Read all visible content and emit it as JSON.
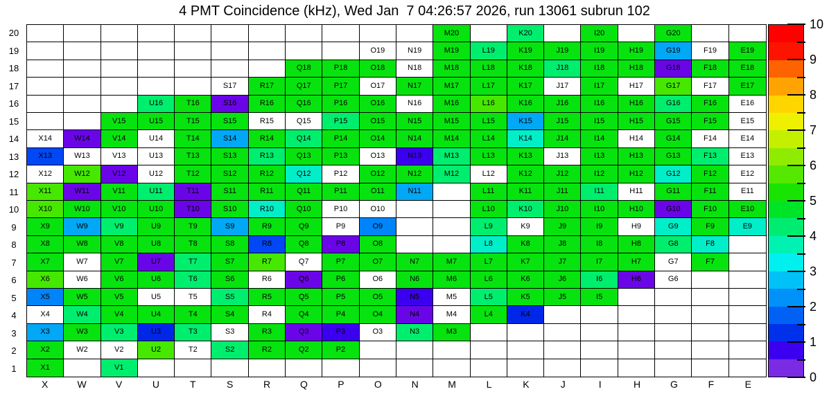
{
  "chart_data": {
    "type": "heatmap",
    "title": "4 PMT Coincidence (kHz), Wed Jan  7 04:26:57 2026, run 13061 subrun 102",
    "run": "13061",
    "subrun": "102",
    "timestamp": "Wed Jan  7 04:26:57 2026",
    "unit": "kHz",
    "columns": [
      "X",
      "W",
      "V",
      "U",
      "T",
      "S",
      "R",
      "Q",
      "P",
      "O",
      "N",
      "M",
      "L",
      "K",
      "J",
      "I",
      "H",
      "G",
      "F",
      "E"
    ],
    "rows": [
      20,
      19,
      18,
      17,
      16,
      15,
      14,
      13,
      12,
      11,
      10,
      9,
      8,
      7,
      6,
      5,
      4,
      3,
      2,
      1
    ],
    "cell_code_legend": "E=empty no PMT, W=white with label (no rate), others=color bucket of measured rate",
    "value_map": {
      "G": 5.0,
      "YG": 5.8,
      "SG": 4.4,
      "TQ": 3.7,
      "LB": 2.8,
      "B": 2.3,
      "DB": 1.8,
      "PB": 1.4,
      "VB": 0.9,
      "V": 0.4,
      "W": null,
      "E": null
    },
    "palette": {
      "G": "#07e30e",
      "YG": "#46e800",
      "SG": "#00ee6e",
      "TQ": "#00eec8",
      "LB": "#00a8f5",
      "B": "#0084fa",
      "DB": "#0047f5",
      "PB": "#0027e8",
      "VB": "#3c00f0",
      "V": "#6a05e8",
      "W": "#ffffff",
      "E": "#ffffff"
    },
    "cells": [
      [
        "E",
        "E",
        "E",
        "E",
        "E",
        "E",
        "E",
        "E",
        "E",
        "E",
        "E",
        "G",
        "E",
        "SG",
        "E",
        "G",
        "E",
        "G",
        "E",
        "E"
      ],
      [
        "E",
        "E",
        "E",
        "E",
        "E",
        "E",
        "E",
        "E",
        "E",
        "W",
        "W",
        "G",
        "SG",
        "G",
        "G",
        "G",
        "G",
        "LB",
        "W",
        "G"
      ],
      [
        "E",
        "E",
        "E",
        "E",
        "E",
        "E",
        "E",
        "G",
        "G",
        "G",
        "W",
        "G",
        "G",
        "G",
        "SG",
        "G",
        "G",
        "V",
        "G",
        "G"
      ],
      [
        "E",
        "E",
        "E",
        "E",
        "E",
        "W",
        "G",
        "G",
        "G",
        "W",
        "G",
        "G",
        "G",
        "G",
        "W",
        "G",
        "W",
        "YG",
        "W",
        "G"
      ],
      [
        "E",
        "E",
        "E",
        "SG",
        "G",
        "V",
        "G",
        "G",
        "G",
        "G",
        "W",
        "G",
        "YG",
        "G",
        "G",
        "G",
        "G",
        "SG",
        "G",
        "W"
      ],
      [
        "E",
        "E",
        "G",
        "G",
        "G",
        "G",
        "W",
        "W",
        "SG",
        "G",
        "G",
        "G",
        "G",
        "LB",
        "G",
        "G",
        "G",
        "G",
        "G",
        "W"
      ],
      [
        "W",
        "V",
        "G",
        "W",
        "G",
        "LB",
        "G",
        "SG",
        "G",
        "G",
        "G",
        "G",
        "G",
        "TQ",
        "G",
        "G",
        "W",
        "G",
        "W",
        "W"
      ],
      [
        "DB",
        "W",
        "W",
        "W",
        "G",
        "G",
        "SG",
        "G",
        "G",
        "W",
        "VB",
        "SG",
        "G",
        "G",
        "W",
        "G",
        "G",
        "G",
        "SG",
        "W"
      ],
      [
        "W",
        "YG",
        "V",
        "W",
        "G",
        "G",
        "G",
        "TQ",
        "W",
        "G",
        "G",
        "SG",
        "W",
        "G",
        "G",
        "G",
        "G",
        "TQ",
        "G",
        "W"
      ],
      [
        "YG",
        "V",
        "G",
        "SG",
        "V",
        "G",
        "G",
        "G",
        "G",
        "G",
        "LB",
        "E",
        "G",
        "G",
        "G",
        "SG",
        "W",
        "G",
        "G",
        "W"
      ],
      [
        "YG",
        "G",
        "G",
        "G",
        "V",
        "G",
        "TQ",
        "G",
        "W",
        "W",
        "E",
        "E",
        "G",
        "SG",
        "G",
        "G",
        "G",
        "V",
        "G",
        "G"
      ],
      [
        "G",
        "LB",
        "SG",
        "G",
        "G",
        "LB",
        "G",
        "G",
        "W",
        "B",
        "E",
        "E",
        "SG",
        "W",
        "G",
        "G",
        "W",
        "TQ",
        "G",
        "TQ"
      ],
      [
        "G",
        "G",
        "G",
        "G",
        "G",
        "G",
        "DB",
        "G",
        "V",
        "G",
        "E",
        "E",
        "TQ",
        "G",
        "G",
        "G",
        "G",
        "SG",
        "TQ",
        "E"
      ],
      [
        "G",
        "W",
        "G",
        "V",
        "SG",
        "G",
        "YG",
        "W",
        "G",
        "G",
        "G",
        "G",
        "G",
        "G",
        "G",
        "G",
        "G",
        "W",
        "G",
        "E"
      ],
      [
        "YG",
        "W",
        "G",
        "G",
        "SG",
        "G",
        "W",
        "V",
        "G",
        "W",
        "G",
        "G",
        "G",
        "G",
        "G",
        "SG",
        "V",
        "W",
        "E",
        "E"
      ],
      [
        "B",
        "G",
        "G",
        "W",
        "W",
        "SG",
        "G",
        "G",
        "G",
        "G",
        "VB",
        "W",
        "SG",
        "G",
        "G",
        "G",
        "E",
        "E",
        "E",
        "E"
      ],
      [
        "W",
        "SG",
        "G",
        "G",
        "G",
        "G",
        "W",
        "G",
        "G",
        "G",
        "V",
        "W",
        "G",
        "PB",
        "E",
        "E",
        "E",
        "E",
        "E",
        "E"
      ],
      [
        "LB",
        "G",
        "SG",
        "PB",
        "SG",
        "W",
        "G",
        "V",
        "VB",
        "W",
        "SG",
        "G",
        "E",
        "E",
        "E",
        "E",
        "E",
        "E",
        "E",
        "E"
      ],
      [
        "G",
        "W",
        "W",
        "YG",
        "W",
        "SG",
        "G",
        "G",
        "G",
        "E",
        "E",
        "E",
        "E",
        "E",
        "E",
        "E",
        "E",
        "E",
        "E",
        "E"
      ],
      [
        "G",
        "E",
        "SG",
        "E",
        "E",
        "E",
        "E",
        "E",
        "E",
        "E",
        "E",
        "E",
        "E",
        "E",
        "E",
        "E",
        "E",
        "E",
        "E",
        "E"
      ]
    ],
    "colorbar": {
      "min": 0,
      "max": 10,
      "tick_values": [
        10,
        9,
        8,
        7,
        6,
        5,
        4,
        3,
        2,
        1,
        0
      ],
      "band_colors_top_to_bottom": [
        "#ff0000",
        "#fc1300",
        "#ff6300",
        "#ffa300",
        "#ffd500",
        "#eef000",
        "#c4f000",
        "#8fec00",
        "#55e800",
        "#19e300",
        "#00e428",
        "#00ec70",
        "#00f2b2",
        "#00f0f0",
        "#00c2f6",
        "#0092f8",
        "#0061f4",
        "#0031ea",
        "#3c00f0",
        "#7b2be4"
      ],
      "legend_position": "right"
    },
    "grid_lines": true
  }
}
